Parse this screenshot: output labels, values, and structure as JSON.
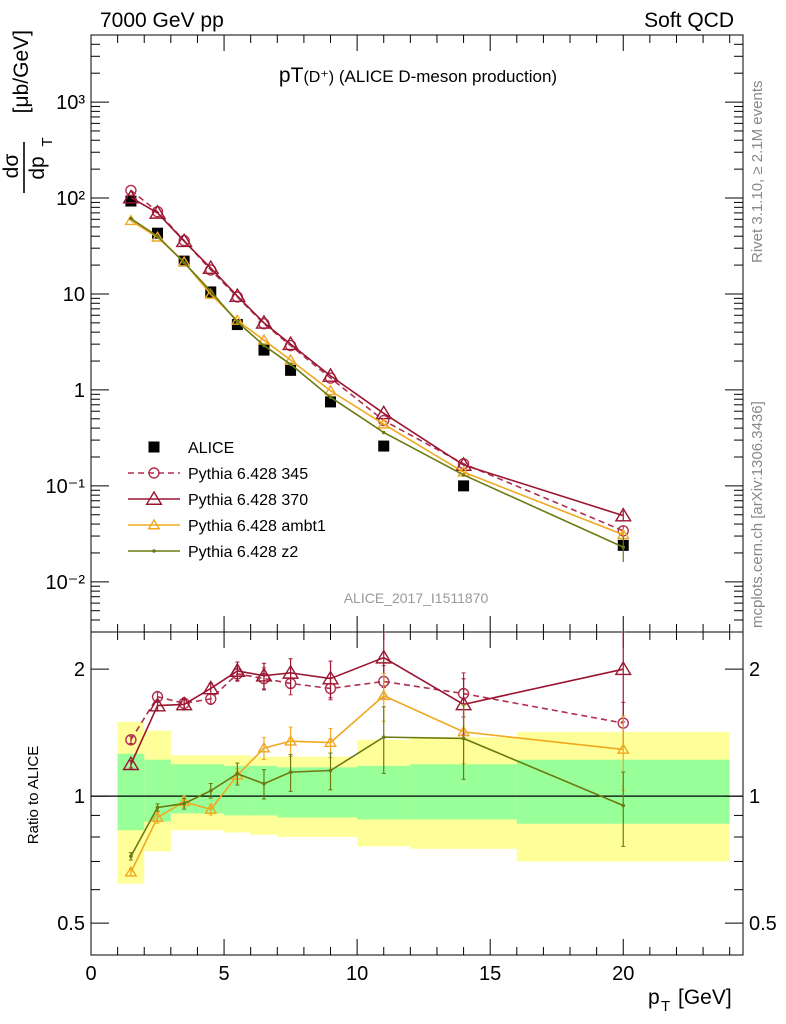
{
  "header": {
    "left": "7000 GeV pp",
    "right": "Soft QCD"
  },
  "side": {
    "top": "Rivet 3.1.10, ≥ 2.1M events",
    "bottom": "mcplots.cern.ch [arXiv:1306.3436]"
  },
  "title": {
    "main": "pT",
    "paren": "(D⁺)",
    "rest": " (ALICE D-meson production)"
  },
  "watermark": "ALICE_2017_I1511870",
  "ylabel": {
    "top_num": "dσ",
    "top_den": "dp",
    "sub": "T",
    "units": "[μb/GeV]"
  },
  "ratio_ylabel": "Ratio to ALICE",
  "xlabel": {
    "main": "p",
    "sub": "T",
    "units": "[GeV]"
  },
  "colors": {
    "alice": "#000000",
    "p345": "#b03050",
    "p370": "#9a1530",
    "ambt1": "#f0a820",
    "z2": "#6b7a10",
    "band_green": "#99ff99",
    "band_yellow": "#ffff99"
  },
  "chart_data": [
    {
      "type": "scatter",
      "yscale": "log",
      "xlim": [
        0,
        24.5
      ],
      "ylim": [
        0.003,
        5000
      ],
      "x_ticks": [
        0,
        5,
        10,
        15,
        20
      ],
      "y_tick_labels": [
        "10⁻²",
        "10⁻¹",
        "1",
        "10",
        "10²",
        "10³"
      ],
      "legend_position": "bottom-left",
      "series": [
        {
          "name": "ALICE",
          "x": [
            1.5,
            2.5,
            3.5,
            4.5,
            5.5,
            6.5,
            7.5,
            9,
            11,
            14,
            20
          ],
          "y": [
            93,
            43,
            22,
            10.5,
            4.8,
            2.6,
            1.6,
            0.75,
            0.26,
            0.1,
            0.024
          ]
        },
        {
          "name": "Pythia 6.428 345",
          "x": [
            1.5,
            2.5,
            3.5,
            4.5,
            5.5,
            6.5,
            7.5,
            9,
            11,
            14,
            20
          ],
          "y": [
            120,
            72,
            36,
            17.8,
            9.3,
            4.9,
            2.9,
            1.33,
            0.48,
            0.17,
            0.034
          ]
        },
        {
          "name": "Pythia 6.428 370",
          "x": [
            1.5,
            2.5,
            3.5,
            4.5,
            5.5,
            6.5,
            7.5,
            9,
            11,
            14,
            20
          ],
          "y": [
            101,
            70,
            35.5,
            18.6,
            9.5,
            5.0,
            3.0,
            1.4,
            0.57,
            0.165,
            0.049
          ]
        },
        {
          "name": "Pythia 6.428 ambt1",
          "x": [
            1.5,
            2.5,
            3.5,
            4.5,
            5.5,
            6.5,
            7.5,
            9,
            11,
            14,
            20
          ],
          "y": [
            58,
            39,
            21.5,
            9.9,
            5.3,
            3.3,
            2.05,
            0.98,
            0.44,
            0.139,
            0.031
          ]
        },
        {
          "name": "Pythia 6.428 z2",
          "x": [
            1.5,
            2.5,
            3.5,
            4.5,
            5.5,
            6.5,
            7.5,
            9,
            11,
            14,
            20
          ],
          "y": [
            61,
            40,
            21.2,
            10.7,
            5.1,
            2.9,
            1.85,
            0.84,
            0.36,
            0.13,
            0.023
          ]
        }
      ]
    },
    {
      "type": "scatter",
      "yscale": "log",
      "xlim": [
        0,
        24.5
      ],
      "ylim": [
        0.42,
        2.45
      ],
      "x_ticks": [
        0,
        5,
        10,
        15,
        20
      ],
      "y_tick_labels": [
        "0.5",
        "1",
        "2"
      ],
      "reference": 1,
      "bands": [
        {
          "x0": 1,
          "x1": 2,
          "green": [
            0.83,
            1.26
          ],
          "yellow": [
            0.62,
            1.5
          ]
        },
        {
          "x0": 2,
          "x1": 3,
          "green": [
            0.87,
            1.22
          ],
          "yellow": [
            0.74,
            1.43
          ]
        },
        {
          "x0": 3,
          "x1": 4,
          "green": [
            0.91,
            1.19
          ],
          "yellow": [
            0.83,
            1.25
          ]
        },
        {
          "x0": 4,
          "x1": 5,
          "green": [
            0.91,
            1.19
          ],
          "yellow": [
            0.83,
            1.25
          ]
        },
        {
          "x0": 5,
          "x1": 6,
          "green": [
            0.9,
            1.18
          ],
          "yellow": [
            0.82,
            1.25
          ]
        },
        {
          "x0": 6,
          "x1": 7,
          "green": [
            0.9,
            1.18
          ],
          "yellow": [
            0.81,
            1.24
          ]
        },
        {
          "x0": 7,
          "x1": 8,
          "green": [
            0.89,
            1.17
          ],
          "yellow": [
            0.8,
            1.24
          ]
        },
        {
          "x0": 8,
          "x1": 10,
          "green": [
            0.89,
            1.17
          ],
          "yellow": [
            0.8,
            1.24
          ]
        },
        {
          "x0": 10,
          "x1": 12,
          "green": [
            0.88,
            1.18
          ],
          "yellow": [
            0.76,
            1.36
          ]
        },
        {
          "x0": 12,
          "x1": 16,
          "green": [
            0.88,
            1.19
          ],
          "yellow": [
            0.75,
            1.38
          ]
        },
        {
          "x0": 16,
          "x1": 24,
          "green": [
            0.86,
            1.22
          ],
          "yellow": [
            0.7,
            1.42
          ]
        }
      ],
      "series": [
        {
          "name": "Pythia 6.428 345",
          "x": [
            1.5,
            2.5,
            3.5,
            4.5,
            5.5,
            6.5,
            7.5,
            9,
            11,
            14,
            20
          ],
          "y": [
            1.36,
            1.72,
            1.66,
            1.7,
            1.95,
            1.9,
            1.85,
            1.8,
            1.87,
            1.75,
            1.49
          ]
        },
        {
          "name": "Pythia 6.428 370",
          "x": [
            1.5,
            2.5,
            3.5,
            4.5,
            5.5,
            6.5,
            7.5,
            9,
            11,
            14,
            20
          ],
          "y": [
            1.19,
            1.64,
            1.65,
            1.8,
            1.98,
            1.93,
            1.96,
            1.9,
            2.13,
            1.65,
            2.0
          ]
        },
        {
          "name": "Pythia 6.428 ambt1",
          "x": [
            1.5,
            2.5,
            3.5,
            4.5,
            5.5,
            6.5,
            7.5,
            9,
            11,
            14,
            20
          ],
          "y": [
            0.66,
            0.89,
            0.97,
            0.93,
            1.12,
            1.3,
            1.35,
            1.34,
            1.73,
            1.42,
            1.29
          ]
        },
        {
          "name": "Pythia 6.428 z2",
          "x": [
            1.5,
            2.5,
            3.5,
            4.5,
            5.5,
            6.5,
            7.5,
            9,
            11,
            14,
            20
          ],
          "y": [
            0.72,
            0.94,
            0.96,
            1.03,
            1.13,
            1.07,
            1.14,
            1.15,
            1.38,
            1.37,
            0.95
          ]
        }
      ]
    }
  ]
}
